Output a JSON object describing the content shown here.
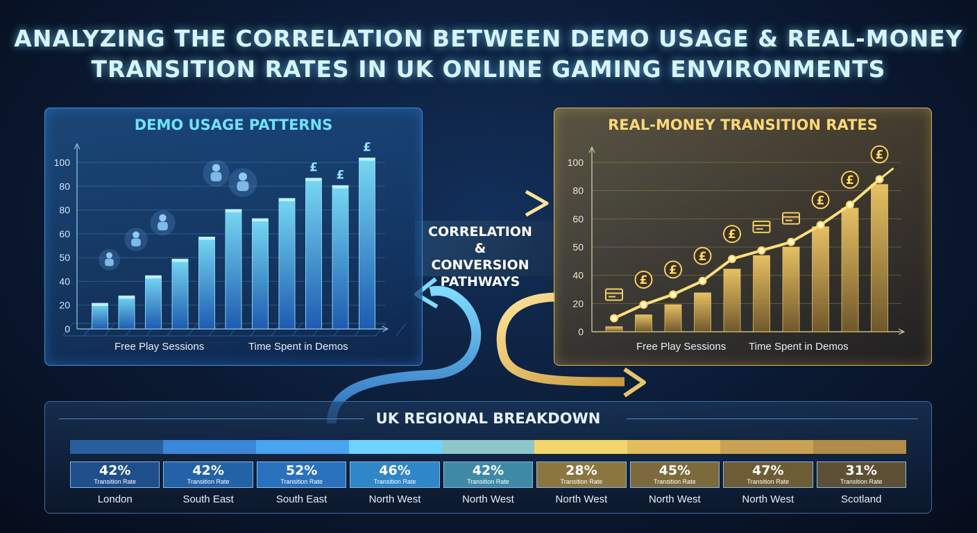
{
  "title": {
    "line1": "ANALYZING THE CORRELATION BETWEEN DEMO USAGE & REAL-MONEY",
    "line2": "TRANSITION RATES IN UK ONLINE GAMING ENVIRONMENTS"
  },
  "center_label": {
    "line1": "CORRELATION",
    "line2": "& CONVERSION",
    "line3": "PATHWAYS"
  },
  "colors": {
    "demo_accent": "#6fe3ff",
    "real_accent": "#ffd877",
    "background": "#0b1a33"
  },
  "chart_data": [
    {
      "type": "bar",
      "title": "DEMO USAGE PATTERNS",
      "y_ticks": [
        "0",
        "20",
        "40",
        "50",
        "60",
        "80",
        "80",
        "100"
      ],
      "x_group_labels": [
        "Free Play Sessions",
        "Time Spent in Demos"
      ],
      "values": [
        14,
        18,
        29,
        38,
        50,
        65,
        60,
        71,
        82,
        78,
        93
      ],
      "ylim": [
        0,
        100
      ],
      "grid": true,
      "icons": [
        "touch-icon",
        "touch-icon",
        "touch-icon",
        "touch-icon",
        "touch-icon",
        "pound-icon",
        "pound-icon",
        "pound-icon"
      ]
    },
    {
      "type": "bar+line",
      "title": "REAL-MONEY TRANSITION RATES",
      "y_ticks": [
        "0",
        "20",
        "40",
        "50",
        "60",
        "80",
        "100"
      ],
      "x_group_labels": [
        "Free Play Sessions",
        "Time Spent in Demos"
      ],
      "bar_values": [
        3,
        10,
        16,
        23,
        37,
        45,
        50,
        62,
        73,
        87
      ],
      "line_values": [
        8,
        16,
        22,
        30,
        43,
        48,
        53,
        63,
        75,
        90
      ],
      "ylim": [
        0,
        100
      ],
      "grid": true,
      "icons": [
        "card-icon",
        "pound-icon",
        "pound-icon",
        "pound-icon",
        "pound-icon",
        "card-icon",
        "card-icon",
        "pound-icon",
        "pound-icon",
        "pound-icon"
      ]
    }
  ],
  "regional": {
    "title": "UK REGIONAL BREAKDOWN",
    "sublabel": "Transition Rate",
    "strip_colors": [
      "#2a5f9e",
      "#3b86d6",
      "#4aa4f0",
      "#6fd3ff",
      "#8fc7c9",
      "#f3d56e",
      "#e2bc5e",
      "#c9a253",
      "#b08c4a"
    ],
    "items": [
      {
        "pct": "42%",
        "region": "London",
        "color": "#1f4f8a"
      },
      {
        "pct": "42%",
        "region": "South East",
        "color": "#2462a8"
      },
      {
        "pct": "52%",
        "region": "South East",
        "color": "#2a71bd"
      },
      {
        "pct": "46%",
        "region": "North West",
        "color": "#2f86c8"
      },
      {
        "pct": "42%",
        "region": "North West",
        "color": "#3e8aa6"
      },
      {
        "pct": "28%",
        "region": "North West",
        "color": "#8c7640"
      },
      {
        "pct": "45%",
        "region": "North West",
        "color": "#7d6a3c"
      },
      {
        "pct": "47%",
        "region": "North West",
        "color": "#6d5c36"
      },
      {
        "pct": "31%",
        "region": "Scotland",
        "color": "#5e5034"
      }
    ]
  }
}
